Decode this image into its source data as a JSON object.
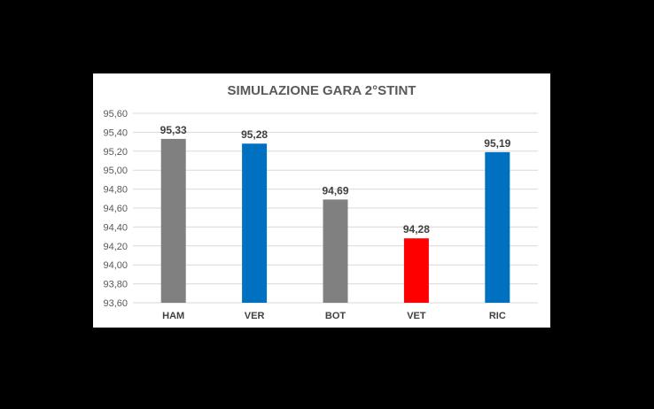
{
  "chart_data": {
    "type": "bar",
    "title": "SIMULAZIONE GARA 2°STINT",
    "xlabel": "",
    "ylabel": "",
    "categories": [
      "HAM",
      "VER",
      "BOT",
      "VET",
      "RIC"
    ],
    "values": [
      95.33,
      95.28,
      94.69,
      94.28,
      95.19
    ],
    "data_labels": [
      "95,33",
      "95,28",
      "94,69",
      "94,28",
      "95,19"
    ],
    "bar_colors": [
      "#808080",
      "#0070c0",
      "#808080",
      "#ff0000",
      "#0070c0"
    ],
    "ylim": [
      93.6,
      95.6
    ],
    "yticks": [
      93.6,
      93.8,
      94.0,
      94.2,
      94.4,
      94.6,
      94.8,
      95.0,
      95.2,
      95.4,
      95.6
    ],
    "ytick_labels": [
      "93,60",
      "93,80",
      "94,00",
      "94,20",
      "94,40",
      "94,60",
      "94,80",
      "95,00",
      "95,20",
      "95,40",
      "95,60"
    ],
    "grid": true,
    "legend": "none"
  }
}
